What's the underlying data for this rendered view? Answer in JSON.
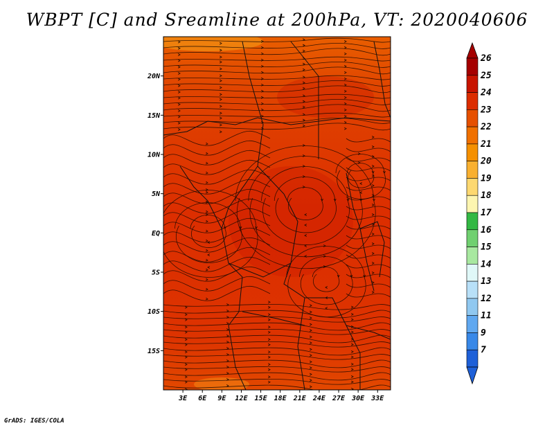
{
  "title": "WBPT [C] and Sreamline at 200hPa, VT: 2020040606",
  "credit": "GrADS: IGES/COLA",
  "map": {
    "lon_labels": [
      "3E",
      "6E",
      "9E",
      "12E",
      "15E",
      "18E",
      "21E",
      "24E",
      "27E",
      "30E",
      "33E"
    ],
    "lat_labels": [
      "20N",
      "15N",
      "10N",
      "5N",
      "EQ",
      "5S",
      "10S",
      "15S"
    ],
    "lon_range": [
      0,
      35
    ],
    "lat_range": [
      -20,
      25
    ],
    "lon_ticks": [
      3,
      6,
      9,
      12,
      15,
      18,
      21,
      24,
      27,
      30,
      33
    ],
    "lat_ticks": [
      20,
      15,
      10,
      5,
      0,
      -5,
      -10,
      -15
    ]
  },
  "colorbar": {
    "labels": [
      "26",
      "25",
      "24",
      "23",
      "22",
      "21",
      "20",
      "19",
      "18",
      "17",
      "16",
      "15",
      "14",
      "13",
      "12",
      "11",
      "9",
      "7"
    ],
    "colors": [
      "#a50000",
      "#c81400",
      "#dc2d00",
      "#e65000",
      "#f07000",
      "#f59000",
      "#f9b030",
      "#fdd870",
      "#fdf5b0",
      "#33b844",
      "#70d070",
      "#a8e8a0",
      "#e0f8f8",
      "#b8e0f8",
      "#90c8f0",
      "#60a8f0",
      "#3888e8",
      "#1e60d8"
    ]
  }
}
